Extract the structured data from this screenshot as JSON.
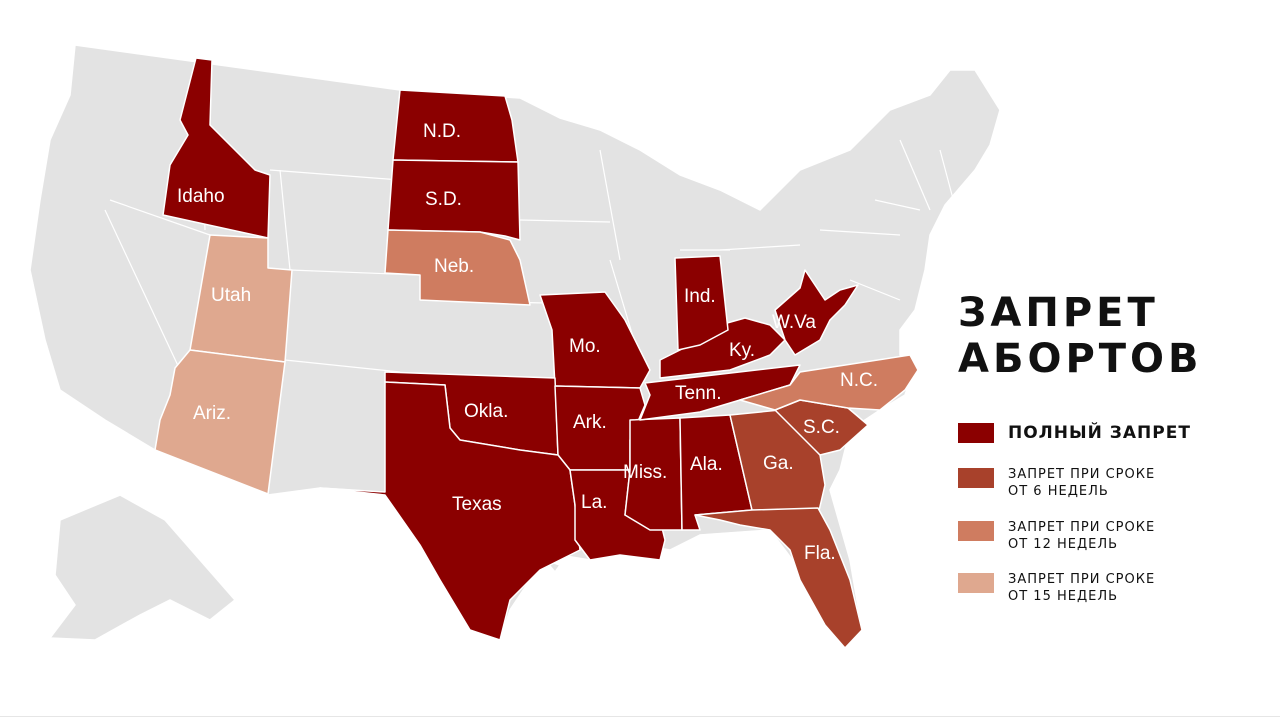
{
  "title": {
    "line1": "ЗАПРЕТ",
    "line2": "АБОРТОВ"
  },
  "colors": {
    "base": "#e3e3e3",
    "border": "#ffffff",
    "full": "#8b0000",
    "weeks6": "#a8412b",
    "weeks12": "#cf7c60",
    "weeks15": "#dfa88f"
  },
  "legend": [
    {
      "key": "full",
      "line1": "ПОЛНЫЙ ЗАПРЕТ",
      "line2": ""
    },
    {
      "key": "weeks6",
      "line1": "ЗАПРЕТ ПРИ СРОКЕ",
      "line2": "ОТ 6 НЕДЕЛЬ"
    },
    {
      "key": "weeks12",
      "line1": "ЗАПРЕТ ПРИ СРОКЕ",
      "line2": "ОТ 12 НЕДЕЛЬ"
    },
    {
      "key": "weeks15",
      "line1": "ЗАПРЕТ ПРИ СРОКЕ",
      "line2": "ОТ 15 НЕДЕЛЬ"
    }
  ],
  "states": [
    {
      "id": "idaho",
      "label": "Idaho",
      "category": "full"
    },
    {
      "id": "north-dakota",
      "label": "N.D.",
      "category": "full"
    },
    {
      "id": "south-dakota",
      "label": "S.D.",
      "category": "full"
    },
    {
      "id": "nebraska",
      "label": "Neb.",
      "category": "weeks12"
    },
    {
      "id": "utah",
      "label": "Utah",
      "category": "weeks15"
    },
    {
      "id": "arizona",
      "label": "Ariz.",
      "category": "weeks15"
    },
    {
      "id": "missouri",
      "label": "Mo.",
      "category": "full"
    },
    {
      "id": "oklahoma",
      "label": "Okla.",
      "category": "full"
    },
    {
      "id": "arkansas",
      "label": "Ark.",
      "category": "full"
    },
    {
      "id": "texas",
      "label": "Texas",
      "category": "full"
    },
    {
      "id": "louisiana",
      "label": "La.",
      "category": "full"
    },
    {
      "id": "mississippi",
      "label": "Miss.",
      "category": "full"
    },
    {
      "id": "alabama",
      "label": "Ala.",
      "category": "full"
    },
    {
      "id": "tennessee",
      "label": "Tenn.",
      "category": "full"
    },
    {
      "id": "kentucky",
      "label": "Ky.",
      "category": "full"
    },
    {
      "id": "indiana",
      "label": "Ind.",
      "category": "full"
    },
    {
      "id": "west-virginia",
      "label": "W.Va",
      "category": "full"
    },
    {
      "id": "georgia",
      "label": "Ga.",
      "category": "weeks6"
    },
    {
      "id": "south-carolina",
      "label": "S.C.",
      "category": "weeks6"
    },
    {
      "id": "florida",
      "label": "Fla.",
      "category": "weeks6"
    },
    {
      "id": "north-carolina",
      "label": "N.C.",
      "category": "weeks12"
    }
  ]
}
